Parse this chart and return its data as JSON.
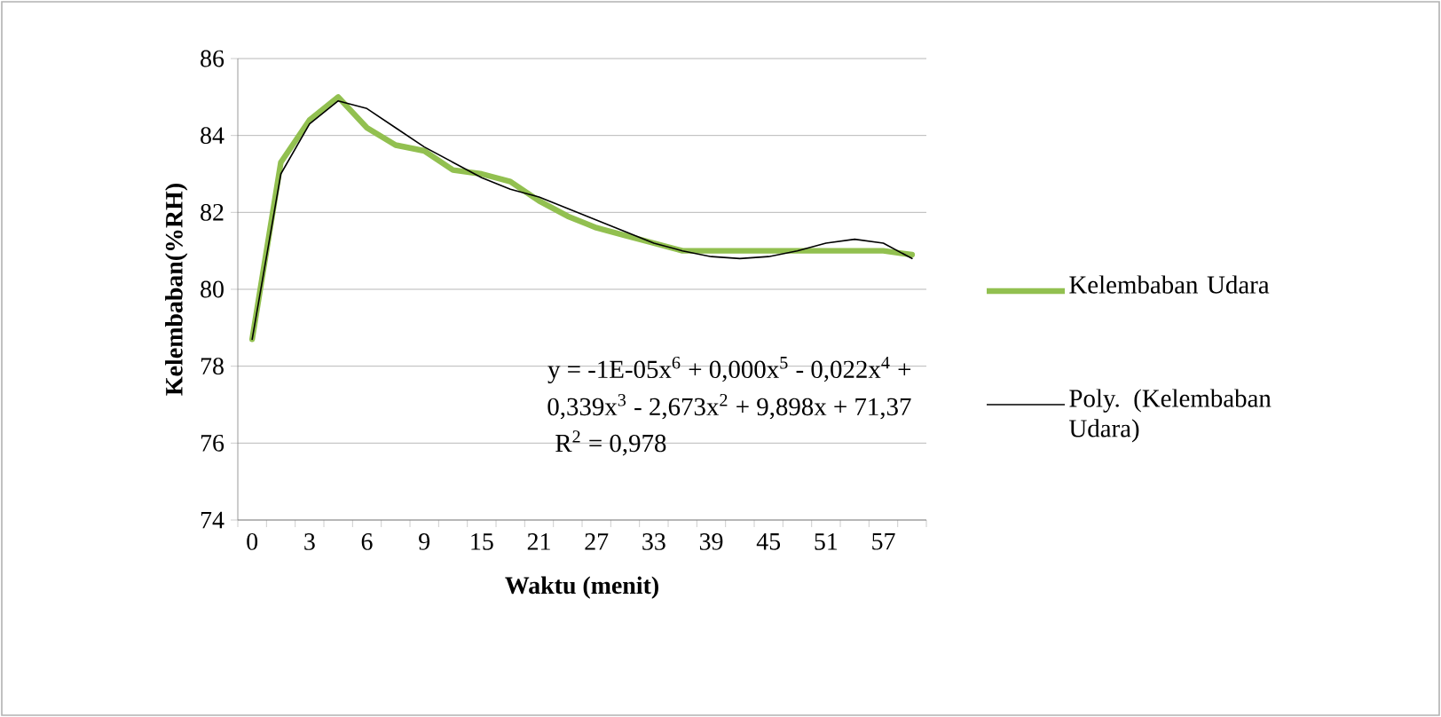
{
  "chart_data": {
    "type": "line",
    "xlabel": "Waktu (menit)",
    "ylabel": "Kelembaban(%RH)",
    "categories": [
      "0",
      null,
      "3",
      null,
      "6",
      null,
      "9",
      null,
      "15",
      null,
      "21",
      null,
      "27",
      null,
      "33",
      null,
      "39",
      null,
      "45",
      null,
      "51",
      null,
      "57",
      null
    ],
    "series": [
      {
        "name": "Kelembaban Udara",
        "color": "#92c050",
        "values": [
          78.7,
          83.3,
          84.4,
          85.0,
          84.2,
          83.75,
          83.6,
          83.1,
          83.0,
          82.8,
          82.3,
          81.9,
          81.6,
          81.4,
          81.2,
          81.0,
          81.0,
          81.0,
          81.0,
          81.0,
          81.0,
          81.0,
          81.0,
          80.9
        ]
      },
      {
        "name": "Poly. (Kelembaban Udara)",
        "color": "#000000",
        "values": [
          78.7,
          83.0,
          84.3,
          84.9,
          84.7,
          84.2,
          83.7,
          83.3,
          82.9,
          82.6,
          82.4,
          82.1,
          81.8,
          81.5,
          81.2,
          81.0,
          80.85,
          80.8,
          80.85,
          81.0,
          81.2,
          81.3,
          81.2,
          80.8
        ]
      }
    ],
    "ylim": [
      74,
      86
    ],
    "yticks": [
      74,
      76,
      78,
      80,
      82,
      84,
      86
    ],
    "grid": "y",
    "legend": "right",
    "marker": "none",
    "line_style": "solid",
    "annotations": [
      "y = -1E-05x$^{6}$ + 0,000x$^{5}$ - 0,022x$^{4}$ +",
      "0,339x$^{3}$ - 2,673x$^{2}$ + 9,898x + 71,37",
      "R$^{2}$ = 0,978"
    ]
  }
}
